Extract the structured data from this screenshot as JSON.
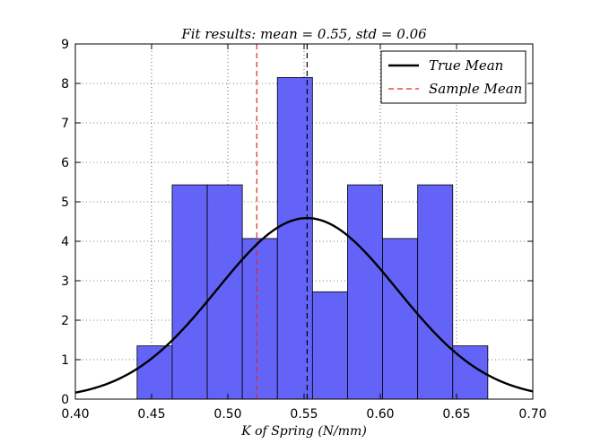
{
  "chart_data": {
    "type": "histogram",
    "title": "Fit results: mean = 0.55, std = 0.06",
    "xlabel": "K of Spring (N/mm)",
    "ylabel": "",
    "xlim": [
      0.4,
      0.7
    ],
    "ylim": [
      0,
      9
    ],
    "xticks": [
      "0.40",
      "0.45",
      "0.50",
      "0.55",
      "0.60",
      "0.65",
      "0.70"
    ],
    "yticks": [
      "0",
      "1",
      "2",
      "3",
      "4",
      "5",
      "6",
      "7",
      "8",
      "9"
    ],
    "grid": true,
    "legend_position": "top-right",
    "bins": [
      {
        "x0": 0.4405,
        "x1": 0.4635,
        "height": 1.35
      },
      {
        "x0": 0.4635,
        "x1": 0.4865,
        "height": 5.43
      },
      {
        "x0": 0.4865,
        "x1": 0.5095,
        "height": 5.43
      },
      {
        "x0": 0.5095,
        "x1": 0.5325,
        "height": 4.07
      },
      {
        "x0": 0.5325,
        "x1": 0.5555,
        "height": 8.15
      },
      {
        "x0": 0.5555,
        "x1": 0.5785,
        "height": 2.72
      },
      {
        "x0": 0.5785,
        "x1": 0.6015,
        "height": 5.43
      },
      {
        "x0": 0.6015,
        "x1": 0.6245,
        "height": 4.07
      },
      {
        "x0": 0.6245,
        "x1": 0.6475,
        "height": 5.43
      },
      {
        "x0": 0.6475,
        "x1": 0.6705,
        "height": 1.35
      }
    ],
    "bar_color": "#5b5bf8",
    "fit_curve": {
      "name": "True Mean",
      "mean": 0.552,
      "std": 0.059,
      "color": "#000000"
    },
    "true_mean_line": {
      "x": 0.552,
      "color": "#000000",
      "style": "dashed"
    },
    "sample_mean_line": {
      "name": "Sample Mean",
      "x": 0.519,
      "color": "#e3242b",
      "style": "dashed"
    },
    "legend": [
      {
        "label": "True Mean",
        "style": "solid",
        "color": "#000000"
      },
      {
        "label": "Sample Mean",
        "style": "dashed",
        "color": "#e3242b"
      }
    ]
  }
}
